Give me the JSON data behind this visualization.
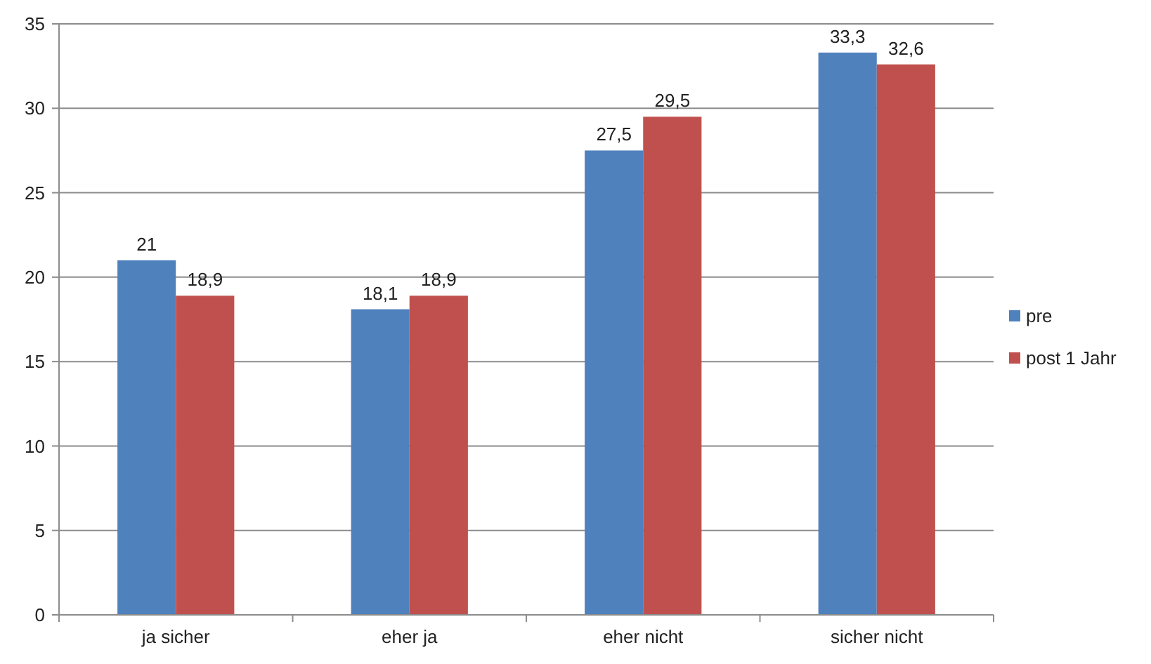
{
  "chart_data": {
    "type": "bar",
    "categories": [
      "ja sicher",
      "eher ja",
      "eher nicht",
      "sicher nicht"
    ],
    "series": [
      {
        "name": "pre",
        "color": "#4f81bd",
        "values": [
          21,
          18.1,
          27.5,
          33.3
        ],
        "value_labels": [
          "21",
          "18,1",
          "27,5",
          "33,3"
        ]
      },
      {
        "name": "post 1 Jahr",
        "color": "#c0504d",
        "values": [
          18.9,
          18.9,
          29.5,
          32.6
        ],
        "value_labels": [
          "18,9",
          "18,9",
          "29,5",
          "32,6"
        ]
      }
    ],
    "ylim": [
      0,
      35
    ],
    "yticks": [
      0,
      5,
      10,
      15,
      20,
      25,
      30,
      35
    ],
    "grid": "y",
    "legend": "right"
  }
}
